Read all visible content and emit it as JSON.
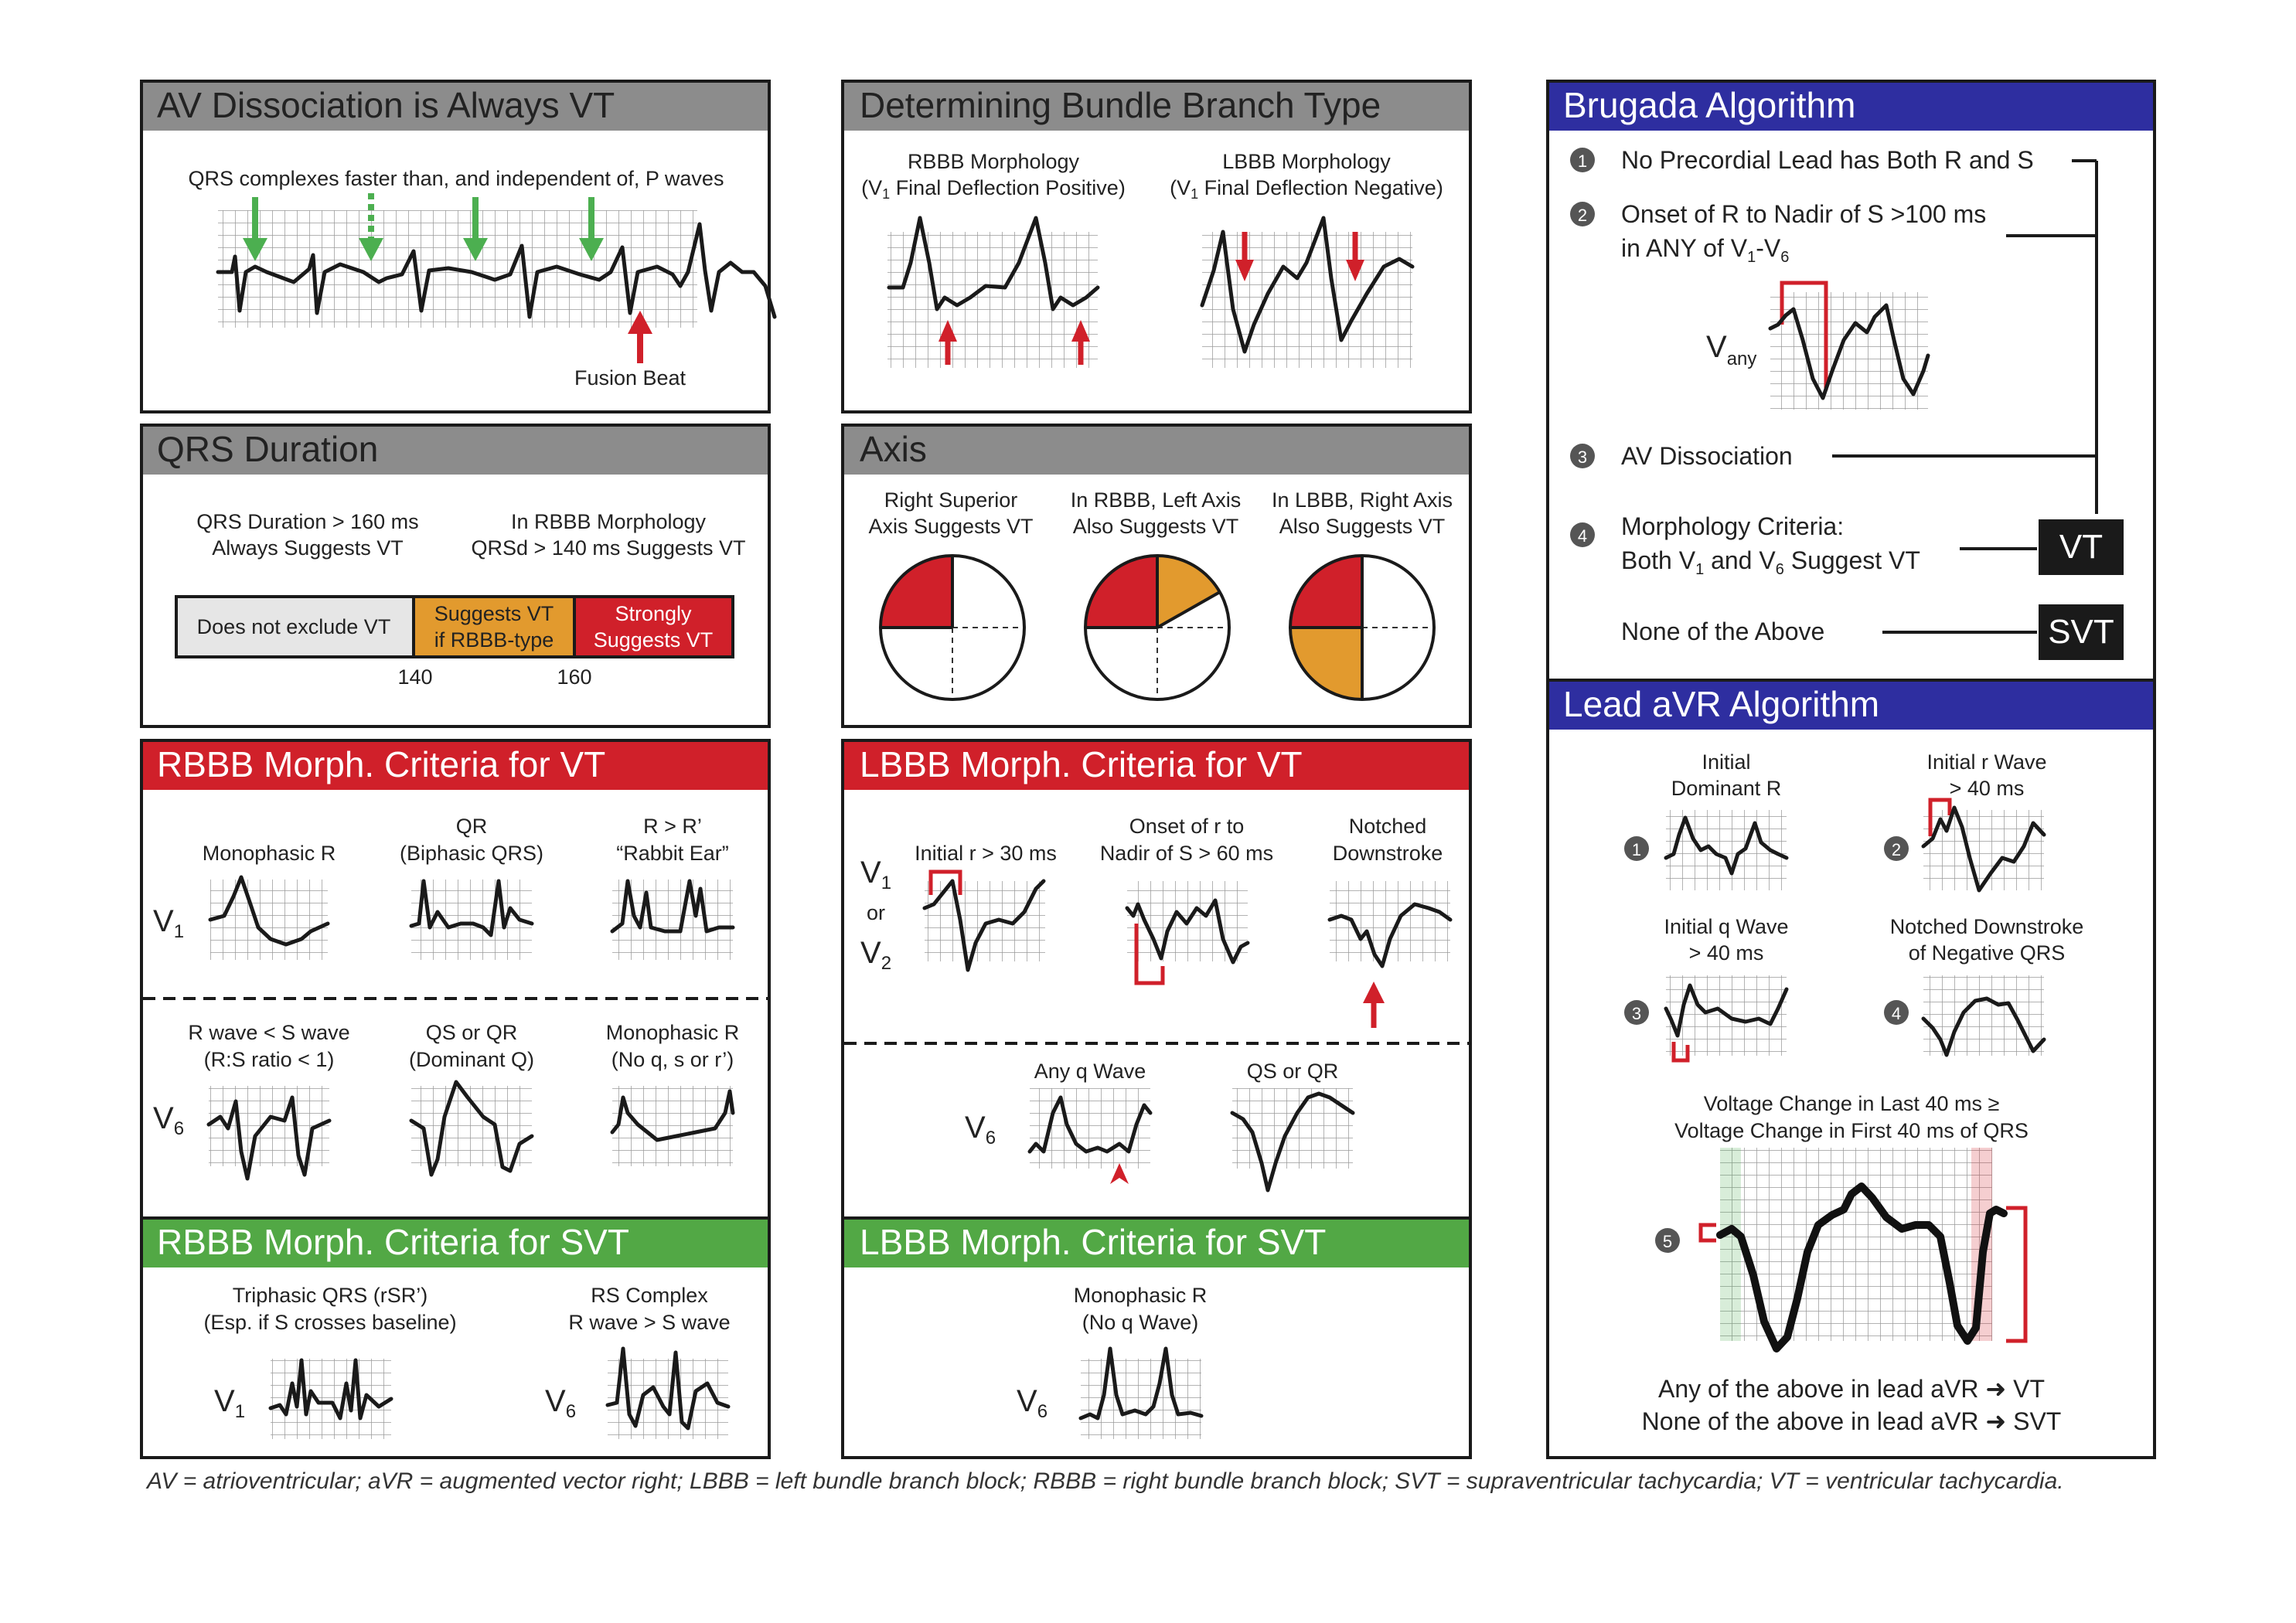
{
  "colors": {
    "gray_header": "#8c8c8c",
    "red_header": "#d0202a",
    "green_header": "#52a845",
    "blue_header": "#2e2ea0",
    "orange": "#e29a2e",
    "red": "#d0202a",
    "green_arrow": "#4caf50"
  },
  "panels": {
    "av": {
      "title": "AV Dissociation is Always VT",
      "caption": "QRS complexes faster than, and independent of, P waves",
      "fusion": "Fusion Beat"
    },
    "bundle": {
      "title": "Determining Bundle Branch Type",
      "rbbb_line1": "RBBB Morphology",
      "rbbb_line2_pre": "(V",
      "rbbb_line2_sub": "1",
      "rbbb_line2_post": " Final Deflection Positive)",
      "lbbb_line1": "LBBB Morphology",
      "lbbb_line2_pre": "(V",
      "lbbb_line2_sub": "1",
      "lbbb_line2_post": " Final Deflection Negative)"
    },
    "qrs": {
      "title": "QRS Duration",
      "left_line1": "QRS Duration > 160 ms",
      "left_line2": "Always Suggests VT",
      "right_line1": "In RBBB Morphology",
      "right_line2": "QRSd > 140 ms Suggests VT",
      "seg1": "Does not exclude VT",
      "seg2_line1": "Suggests VT",
      "seg2_line2": "if RBBB-type",
      "seg3_line1": "Strongly",
      "seg3_line2": "Suggests VT",
      "tick1": "140",
      "tick2": "160"
    },
    "axis": {
      "title": "Axis",
      "c1_line1": "Right Superior",
      "c1_line2": "Axis Suggests VT",
      "c2_line1": "In RBBB, Left Axis",
      "c2_line2": "Also Suggests VT",
      "c3_line1": "In LBBB, Right Axis",
      "c3_line2": "Also Suggests VT"
    },
    "rbbb_vt": {
      "title": "RBBB Morph. Criteria for VT",
      "v1": "V",
      "v1_sub": "1",
      "v6": "V",
      "v6_sub": "6",
      "a_line1": "Monophasic R",
      "b_line1": "QR",
      "b_line2": "(Biphasic QRS)",
      "c_line1": "R > R’",
      "c_line2": "“Rabbit Ear”",
      "d_line1": "R wave < S wave",
      "d_line2": "(R:S ratio < 1)",
      "e_line1": "QS or QR",
      "e_line2": "(Dominant Q)",
      "f_line1": "Monophasic R",
      "f_line2": "(No q, s or r’)"
    },
    "lbbb_vt": {
      "title": "LBBB Morph. Criteria for VT",
      "v1": "V",
      "v1_sub": "1",
      "or": "or",
      "v2": "V",
      "v2_sub": "2",
      "v6": "V",
      "v6_sub": "6",
      "a_line1": "Initial r > 30 ms",
      "b_line1": "Onset of r to",
      "b_line2": "Nadir of S > 60 ms",
      "c_line1": "Notched",
      "c_line2": "Downstroke",
      "d_line1": "Any q Wave",
      "e_line1": "QS or QR"
    },
    "rbbb_svt": {
      "title": "RBBB Morph. Criteria for SVT",
      "a_line1": "Triphasic QRS (rSR’)",
      "a_line2": "(Esp. if S crosses baseline)",
      "b_line1": "RS Complex",
      "b_line2": "R wave > S wave",
      "v1": "V",
      "v1_sub": "1",
      "v6": "V",
      "v6_sub": "6"
    },
    "lbbb_svt": {
      "title": "LBBB Morph. Criteria for SVT",
      "a_line1": "Monophasic R",
      "a_line2": "(No q Wave)",
      "v6": "V",
      "v6_sub": "6"
    },
    "brugada": {
      "title": "Brugada Algorithm",
      "n1": "1",
      "n2": "2",
      "n3": "3",
      "n4": "4",
      "s1": "No Precordial Lead has Both R and S",
      "s2_line1": "Onset of R to Nadir of S >100 ms",
      "s2_line2_pre": "in ANY of V",
      "s2_line2_sub1": "1",
      "s2_line2_mid": "-V",
      "s2_line2_sub2": "6",
      "vany": "V",
      "vany_sub": "any",
      "s3": "AV Dissociation",
      "s4_line1": "Morphology Criteria:",
      "s4_line2_pre": "Both V",
      "s4_line2_sub1": "1",
      "s4_line2_mid": " and V",
      "s4_line2_sub2": "6",
      "s4_line2_post": " Suggest VT",
      "none": "None of the Above",
      "vt": "VT",
      "svt": "SVT"
    },
    "avr": {
      "title": "Lead aVR Algorithm",
      "n1": "1",
      "n2": "2",
      "n3": "3",
      "n4": "4",
      "n5": "5",
      "a_line1": "Initial",
      "a_line2": "Dominant R",
      "b_line1": "Initial r Wave",
      "b_line2": "> 40 ms",
      "c_line1": "Initial q Wave",
      "c_line2": "> 40 ms",
      "d_line1": "Notched Downstroke",
      "d_line2": "of Negative QRS",
      "e_line1": "Voltage Change in Last 40 ms ≥",
      "e_line2": "Voltage Change in First 40 ms of QRS",
      "result1": "Any of the above in lead aVR ➜ VT",
      "result2": "None of the above in lead aVR ➜ SVT"
    }
  },
  "footnote": "AV = atrioventricular; aVR = augmented vector right; LBBB = left bundle branch block; RBBB = right bundle branch block; SVT = supraventricular tachycardia; VT = ventricular tachycardia."
}
